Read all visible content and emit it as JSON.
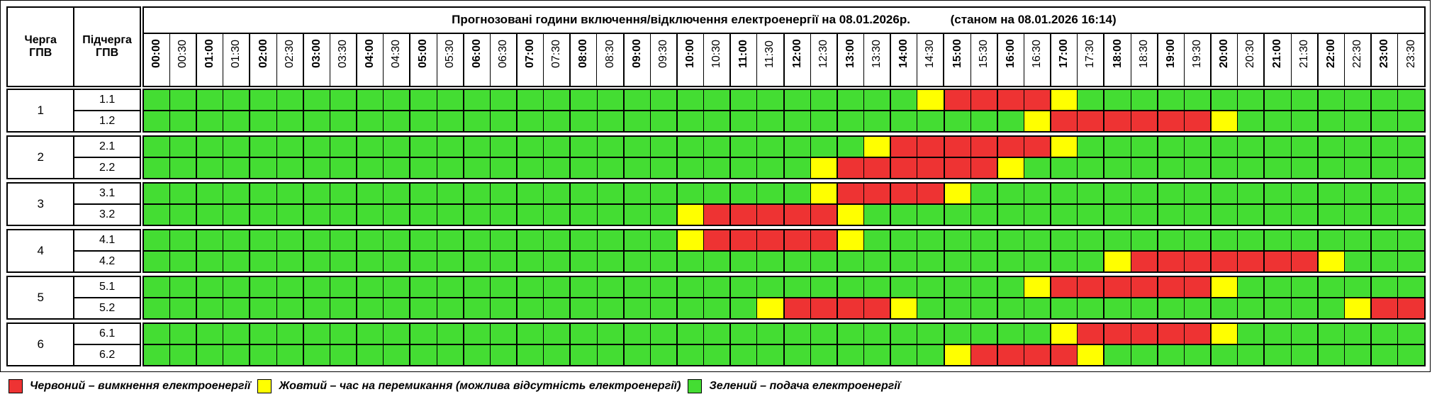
{
  "header": {
    "queue_label": "Черга\nГПВ",
    "subqueue_label": "Підчерга\nГПВ",
    "title": "Прогнозовані години включення/відключення електроенергії на 08.01.2026р.            (станом на 08.01.2026 16:14)"
  },
  "times": [
    "00:00",
    "00:30",
    "01:00",
    "01:30",
    "02:00",
    "02:30",
    "03:00",
    "03:30",
    "04:00",
    "04:30",
    "05:00",
    "05:30",
    "06:00",
    "06:30",
    "07:00",
    "07:30",
    "08:00",
    "08:30",
    "09:00",
    "09:30",
    "10:00",
    "10:30",
    "11:00",
    "11:30",
    "12:00",
    "12:30",
    "13:00",
    "13:30",
    "14:00",
    "14:30",
    "15:00",
    "15:30",
    "16:00",
    "16:30",
    "17:00",
    "17:30",
    "18:00",
    "18:30",
    "19:00",
    "19:30",
    "20:00",
    "20:30",
    "21:00",
    "21:30",
    "22:00",
    "22:30",
    "23:00",
    "23:30"
  ],
  "colors": {
    "red": "#ee3333",
    "yellow": "#ffff00",
    "green": "#44dd33"
  },
  "groups": [
    {
      "queue": "1",
      "rows": [
        {
          "sub": "1.1",
          "slots": "GGGGGGGGGGGGGGGGGGGGGGGGGGGGGYRRRRYGGGGGGGGGGGGG"
        },
        {
          "sub": "1.2",
          "slots": "GGGGGGGGGGGGGGGGGGGGGGGGGGGGGGGGGYRRRRRRYGGGGGGG"
        }
      ]
    },
    {
      "queue": "2",
      "rows": [
        {
          "sub": "2.1",
          "slots": "GGGGGGGGGGGGGGGGGGGGGGGGGGGYRRRRRRYGGGGGGGGGGGGG"
        },
        {
          "sub": "2.2",
          "slots": "GGGGGGGGGGGGGGGGGGGGGGGGGYRRRRRRYGGGGGGGGGGGGGGG"
        }
      ]
    },
    {
      "queue": "3",
      "rows": [
        {
          "sub": "3.1",
          "slots": "GGGGGGGGGGGGGGGGGGGGGGGGGYRRRRYGGGGGGGGGGGGGGGGG"
        },
        {
          "sub": "3.2",
          "slots": "GGGGGGGGGGGGGGGGGGGGYRRRRRYGGGGGGGGGGGGGGGGGGGGG"
        }
      ]
    },
    {
      "queue": "4",
      "rows": [
        {
          "sub": "4.1",
          "slots": "GGGGGGGGGGGGGGGGGGGGYRRRRRYGGGGGGGGGGGGGGGGGGGGG"
        },
        {
          "sub": "4.2",
          "slots": "GGGGGGGGGGGGGGGGGGGGGGGGGGGGGGGGGGGGYRRRRRRRYGGG"
        }
      ]
    },
    {
      "queue": "5",
      "rows": [
        {
          "sub": "5.1",
          "slots": "GGGGGGGGGGGGGGGGGGGGGGGGGGGGGGGGGYRRRRRRYGGGGGGG"
        },
        {
          "sub": "5.2",
          "slots": "GGGGGGGGGGGGGGGGGGGGGGGYRRRRYGGGGGGGGGGGGGGGGYRR"
        }
      ]
    },
    {
      "queue": "6",
      "rows": [
        {
          "sub": "6.1",
          "slots": "GGGGGGGGGGGGGGGGGGGGGGGGGGGGGGGGGGYRRRRRYGGGGGGG"
        },
        {
          "sub": "6.2",
          "slots": "GGGGGGGGGGGGGGGGGGGGGGGGGGGGGGYRRRRYGGGGGGGGGGGG"
        }
      ]
    }
  ],
  "legend": {
    "red_label": "Червоний – вимкнення електроенергії",
    "yellow_label": "Жовтий – час на перемикання (можлива відсутність електроенергії)",
    "green_label": "Зелений – подача електроенергії"
  }
}
